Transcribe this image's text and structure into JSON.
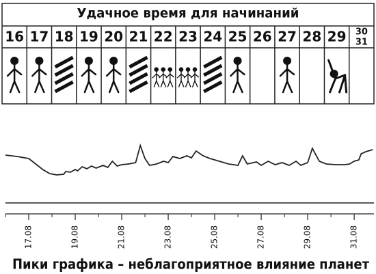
{
  "table": {
    "title": "Удачное время для начинаний",
    "days": [
      "16",
      "17",
      "18",
      "19",
      "20",
      "21",
      "22",
      "23",
      "24",
      "25",
      "26",
      "27",
      "28",
      "29",
      [
        "30",
        "31"
      ]
    ]
  },
  "chart_data": {
    "type": "line",
    "title": "Пики графика – неблагоприятное влияние планет",
    "x": [
      16,
      16.5,
      17,
      17.3,
      17.6,
      17.9,
      18.2,
      18.5,
      18.6,
      18.8,
      19,
      19.1,
      19.3,
      19.5,
      19.7,
      19.9,
      20.2,
      20.4,
      20.6,
      20.8,
      21,
      21.3,
      21.6,
      21.8,
      22,
      22.2,
      22.5,
      22.8,
      23,
      23.2,
      23.5,
      23.8,
      24,
      24.2,
      24.5,
      24.8,
      25.2,
      25.6,
      26,
      26.2,
      26.4,
      26.8,
      27,
      27.3,
      27.6,
      27.9,
      28.2,
      28.5,
      28.7,
      29,
      29.2,
      29.5,
      29.8,
      30.2,
      30.6,
      30.8,
      31,
      31.2,
      31.3,
      31.5,
      31.8
    ],
    "values": [
      70,
      68,
      65,
      57,
      49,
      43,
      41,
      42,
      46,
      45,
      49,
      47,
      53,
      50,
      54,
      51,
      55,
      52,
      61,
      54,
      56,
      57,
      59,
      84,
      65,
      55,
      57,
      61,
      59,
      68,
      65,
      69,
      66,
      76,
      69,
      65,
      61,
      57,
      55,
      69,
      57,
      60,
      55,
      61,
      56,
      59,
      55,
      61,
      55,
      59,
      80,
      61,
      57,
      56,
      56,
      57,
      61,
      63,
      72,
      75,
      78
    ],
    "color": "#222222",
    "xlim": [
      16,
      31.85
    ],
    "ylim": [
      0,
      100
    ],
    "xticks": [
      {
        "value": 17,
        "label": "17.08"
      },
      {
        "value": 19,
        "label": "19.08"
      },
      {
        "value": 21,
        "label": "21.08"
      },
      {
        "value": 23,
        "label": "23.08"
      },
      {
        "value": 25,
        "label": "25.08"
      },
      {
        "value": 27,
        "label": "27.08"
      },
      {
        "value": 29,
        "label": "29.08"
      },
      {
        "value": 31,
        "label": "31.08"
      }
    ]
  }
}
